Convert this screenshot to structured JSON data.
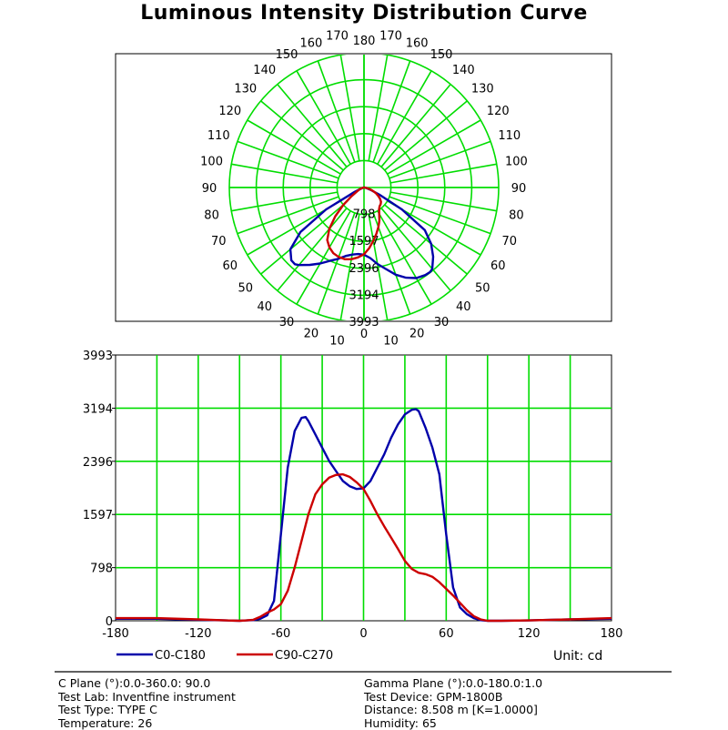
{
  "title": "Luminous Intensity Distribution Curve",
  "colors": {
    "grid": "#00dd00",
    "series_blue": "#0000aa",
    "series_red": "#cc0000",
    "frame": "#000000"
  },
  "chart_data": [
    {
      "type": "polar",
      "angle_labels_left": [
        "0",
        "10",
        "20",
        "30",
        "40",
        "50",
        "60",
        "70",
        "80",
        "90",
        "100",
        "110",
        "120",
        "130",
        "140",
        "150",
        "160",
        "170",
        "180"
      ],
      "angle_labels_right": [
        "10",
        "20",
        "30",
        "40",
        "50",
        "60",
        "70",
        "80",
        "90",
        "100",
        "110",
        "120",
        "130",
        "140",
        "150",
        "160",
        "170"
      ],
      "radial_labels": [
        "798",
        "1597",
        "2396",
        "3194",
        "3993"
      ],
      "rmax": 3993,
      "series": [
        {
          "name": "C0-C180",
          "color": "#0000aa",
          "gamma": [
            -90,
            -85,
            -80,
            -75,
            -70,
            -65,
            -60,
            -55,
            -50,
            -45,
            -42,
            -40,
            -35,
            -30,
            -25,
            -20,
            -15,
            -10,
            -5,
            0,
            5,
            10,
            15,
            20,
            25,
            30,
            35,
            38,
            40,
            45,
            50,
            55,
            60,
            65,
            70,
            75,
            80,
            85,
            90
          ],
          "values": [
            0,
            5,
            10,
            30,
            80,
            300,
            1300,
            2300,
            2850,
            3050,
            3060,
            3000,
            2800,
            2600,
            2400,
            2250,
            2100,
            2020,
            1980,
            1990,
            2100,
            2300,
            2500,
            2750,
            2950,
            3100,
            3170,
            3180,
            3150,
            2900,
            2600,
            2200,
            1300,
            500,
            200,
            100,
            40,
            10,
            0
          ]
        },
        {
          "name": "C90-C270",
          "color": "#cc0000",
          "gamma": [
            -90,
            -85,
            -80,
            -75,
            -70,
            -65,
            -60,
            -55,
            -50,
            -45,
            -40,
            -35,
            -30,
            -25,
            -20,
            -15,
            -10,
            -5,
            0,
            5,
            10,
            15,
            20,
            25,
            30,
            35,
            40,
            45,
            50,
            55,
            60,
            65,
            70,
            75,
            80,
            85,
            90
          ],
          "values": [
            0,
            5,
            15,
            60,
            120,
            170,
            250,
            450,
            800,
            1200,
            1600,
            1900,
            2050,
            2150,
            2190,
            2200,
            2160,
            2080,
            1980,
            1800,
            1600,
            1420,
            1250,
            1080,
            900,
            780,
            720,
            700,
            660,
            580,
            480,
            380,
            270,
            160,
            70,
            20,
            0
          ]
        }
      ]
    },
    {
      "type": "line",
      "x_ticks": [
        "-180",
        "-120",
        "-60",
        "0",
        "60",
        "120",
        "180"
      ],
      "y_ticks": [
        "0",
        "798",
        "1597",
        "2396",
        "3194",
        "3993"
      ],
      "xlim": [
        -180,
        180
      ],
      "ylim": [
        0,
        3993
      ],
      "legend": [
        "C0-C180",
        "C90-C270"
      ],
      "unit": "Unit: cd",
      "series": [
        {
          "name": "C0-C180",
          "color": "#0000aa",
          "x": [
            -180,
            -150,
            -120,
            -100,
            -90,
            -85,
            -80,
            -75,
            -70,
            -65,
            -60,
            -55,
            -50,
            -45,
            -42,
            -40,
            -35,
            -30,
            -25,
            -20,
            -15,
            -10,
            -5,
            0,
            5,
            10,
            15,
            20,
            25,
            30,
            35,
            38,
            40,
            45,
            50,
            55,
            60,
            65,
            70,
            75,
            80,
            85,
            90,
            100,
            120,
            150,
            180
          ],
          "y": [
            30,
            30,
            15,
            5,
            0,
            5,
            10,
            30,
            80,
            300,
            1300,
            2300,
            2850,
            3050,
            3060,
            3000,
            2800,
            2600,
            2400,
            2250,
            2100,
            2020,
            1980,
            1990,
            2100,
            2300,
            2500,
            2750,
            2950,
            3100,
            3170,
            3180,
            3150,
            2900,
            2600,
            2200,
            1300,
            500,
            200,
            100,
            40,
            10,
            0,
            0,
            5,
            20,
            30
          ]
        },
        {
          "name": "C90-C270",
          "color": "#cc0000",
          "x": [
            -180,
            -150,
            -120,
            -100,
            -90,
            -85,
            -80,
            -75,
            -70,
            -65,
            -60,
            -55,
            -50,
            -45,
            -40,
            -35,
            -30,
            -25,
            -20,
            -15,
            -10,
            -5,
            0,
            5,
            10,
            15,
            20,
            25,
            30,
            35,
            40,
            45,
            50,
            55,
            60,
            65,
            70,
            75,
            80,
            85,
            90,
            100,
            120,
            150,
            180
          ],
          "y": [
            40,
            40,
            20,
            5,
            0,
            5,
            15,
            60,
            120,
            170,
            250,
            450,
            800,
            1200,
            1600,
            1900,
            2050,
            2150,
            2190,
            2200,
            2160,
            2080,
            1980,
            1800,
            1600,
            1420,
            1250,
            1080,
            900,
            780,
            720,
            700,
            660,
            580,
            480,
            380,
            270,
            160,
            70,
            20,
            0,
            0,
            5,
            20,
            40
          ]
        }
      ]
    }
  ],
  "info": {
    "left": [
      "C Plane (°):0.0-360.0: 90.0",
      "Test Lab: Inventfine instrument",
      "Test Type: TYPE C",
      "Temperature: 26"
    ],
    "right": [
      "Gamma Plane (°):0.0-180.0:1.0",
      "Test Device: GPM-1800B",
      "Distance: 8.508 m [K=1.0000]",
      "Humidity: 65"
    ]
  }
}
